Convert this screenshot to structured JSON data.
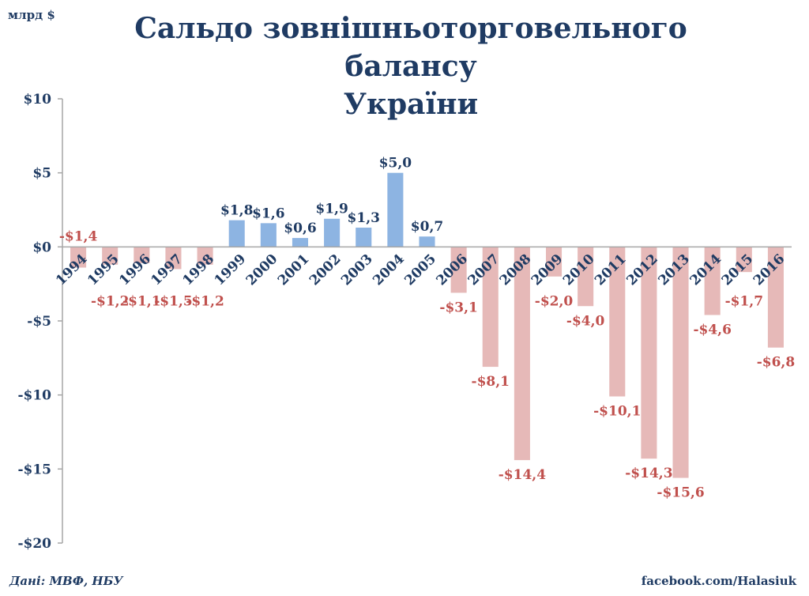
{
  "chart_data": {
    "type": "bar",
    "title_line1": "Сальдо зовнішньоторговельного  балансу",
    "title_line2": "України",
    "ylabel": "млрд $",
    "xlabel": "",
    "ylim": [
      -20,
      10
    ],
    "yticks": [
      10,
      5,
      0,
      -5,
      -10,
      -15,
      -20
    ],
    "ytick_labels": [
      "$10",
      "$5",
      "$0",
      "-$5",
      "-$10",
      "-$15",
      "-$20"
    ],
    "grid": false,
    "categories": [
      "1994",
      "1995",
      "1996",
      "1997",
      "1998",
      "1999",
      "2000",
      "2001",
      "2002",
      "2003",
      "2004",
      "2005",
      "2006",
      "2007",
      "2008",
      "2009",
      "2010",
      "2011",
      "2012",
      "2013",
      "2014",
      "2015",
      "2016"
    ],
    "values": [
      -1.4,
      -1.2,
      -1.1,
      -1.5,
      -1.2,
      1.8,
      1.6,
      0.6,
      1.9,
      1.3,
      5.0,
      0.7,
      -3.1,
      -8.1,
      -14.4,
      -2.0,
      -4.0,
      -10.1,
      -14.3,
      -15.6,
      -4.6,
      -1.7,
      -6.8
    ],
    "data_labels": [
      "-$1,4",
      "-$1,2",
      "-$1,1",
      "-$1,5",
      "-$1,2",
      "$1,8",
      "$1,6",
      "$0,6",
      "$1,9",
      "$1,3",
      "$5,0",
      "$0,7",
      "-$3,1",
      "-$8,1",
      "-$14,4",
      "-$2,0",
      "-$4,0",
      "-$10,1",
      "-$14,3",
      "-$15,6",
      "-$4,6",
      "-$1,7",
      "-$6,8"
    ],
    "colors": {
      "positive": "#8db4e2",
      "negative": "#e6b9b8",
      "positive_label": "#1f3b63",
      "negative_label": "#c0504d",
      "axis": "#a6a6a6",
      "text": "#1f3b63"
    }
  },
  "footer": {
    "source": "Дані: МВФ, НБУ",
    "credit": "facebook.com/Halasiuk"
  }
}
